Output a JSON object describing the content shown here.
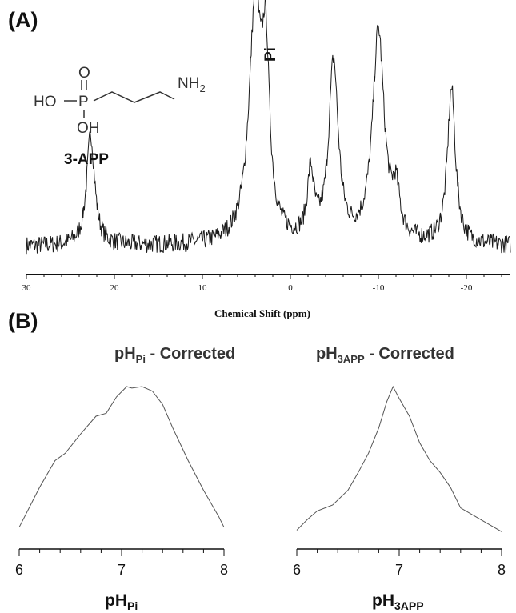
{
  "panel_labels": {
    "a": "(A)",
    "b": "(B)"
  },
  "molecule": {
    "atoms": {
      "ho": "HO",
      "p": "P",
      "o": "O",
      "oh": "OH",
      "nh": "NH",
      "sub2": "2"
    },
    "label": "3-APP"
  },
  "peak_label": "Pi",
  "chart_data": [
    {
      "type": "line",
      "panel": "A",
      "title": "",
      "xlabel": "Chemical Shift (ppm)",
      "ylabel": "",
      "xlim": [
        30,
        -25
      ],
      "xticks": [
        30,
        20,
        10,
        0,
        -10,
        -20
      ],
      "xtick_labels": [
        "30",
        "20",
        "10",
        "0",
        "-10",
        "-20"
      ],
      "x_reversed": true,
      "grid": false,
      "annotations": [
        {
          "text": "3-APP",
          "x": 22.7
        },
        {
          "text": "Pi",
          "x": 2.8
        }
      ],
      "series": [
        {
          "peaks": [
            {
              "center": 22.7,
              "height": 0.48,
              "width": 0.55
            },
            {
              "center": 4.0,
              "height": 1.0,
              "width": 0.85
            },
            {
              "center": 2.8,
              "height": 0.68,
              "width": 0.5
            },
            {
              "center": -2.3,
              "height": 0.28,
              "width": 0.45
            },
            {
              "center": -4.9,
              "height": 0.77,
              "width": 0.65
            },
            {
              "center": -10.0,
              "height": 0.91,
              "width": 0.8
            },
            {
              "center": -12.0,
              "height": 0.18,
              "width": 0.5
            },
            {
              "center": -18.3,
              "height": 0.67,
              "width": 0.55
            }
          ],
          "noise_amplitude": 0.04
        }
      ]
    },
    {
      "type": "line",
      "panel": "B-left",
      "title": "pH",
      "title_sub": "Pi",
      "title_suffix": " - Corrected",
      "xlabel": "pH",
      "xlabel_sub": "Pi",
      "ylabel": "",
      "xlim": [
        6,
        8
      ],
      "xticks": [
        6,
        7,
        8
      ],
      "xtick_labels": [
        "6",
        "7",
        "8"
      ],
      "grid": false,
      "series": [
        {
          "x": [
            6.0,
            6.2,
            6.35,
            6.45,
            6.6,
            6.75,
            6.85,
            6.95,
            7.05,
            7.1,
            7.2,
            7.3,
            7.4,
            7.5,
            7.65,
            7.8,
            7.95,
            8.0
          ],
          "y": [
            0.05,
            0.32,
            0.5,
            0.55,
            0.68,
            0.8,
            0.82,
            0.93,
            1.0,
            0.99,
            1.0,
            0.97,
            0.88,
            0.72,
            0.5,
            0.3,
            0.12,
            0.05
          ]
        }
      ]
    },
    {
      "type": "line",
      "panel": "B-right",
      "title": "pH",
      "title_sub": "3APP",
      "title_suffix": " - Corrected",
      "xlabel": "pH",
      "xlabel_sub": "3APP",
      "ylabel": "",
      "xlim": [
        6,
        8
      ],
      "xticks": [
        6,
        7,
        8
      ],
      "xtick_labels": [
        "6",
        "7",
        "8"
      ],
      "grid": false,
      "series": [
        {
          "x": [
            6.0,
            6.1,
            6.2,
            6.35,
            6.5,
            6.6,
            6.7,
            6.8,
            6.88,
            6.94,
            7.0,
            7.1,
            7.2,
            7.3,
            7.4,
            7.5,
            7.6,
            7.75,
            7.9,
            8.0
          ],
          "y": [
            0.03,
            0.1,
            0.16,
            0.2,
            0.3,
            0.42,
            0.55,
            0.72,
            0.9,
            1.0,
            0.92,
            0.8,
            0.62,
            0.5,
            0.42,
            0.32,
            0.18,
            0.12,
            0.06,
            0.02
          ]
        }
      ]
    }
  ]
}
